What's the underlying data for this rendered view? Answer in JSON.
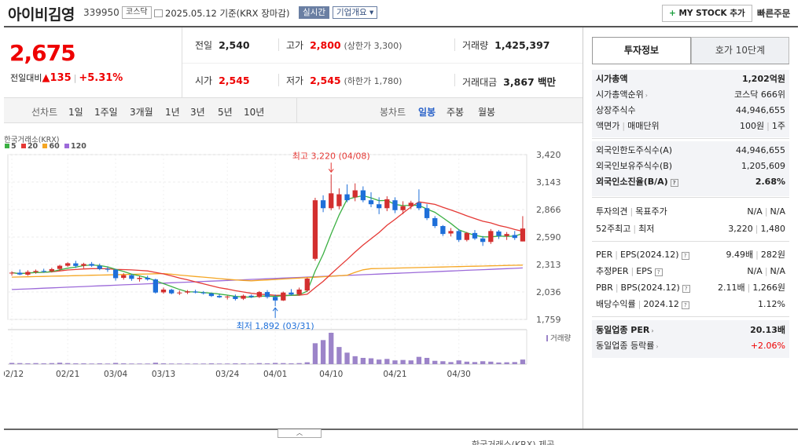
{
  "header": {
    "name": "아이비김영",
    "code": "339950",
    "market": "코스닥",
    "date": "2025.05.12 기준(KRX 장마감)",
    "realtime": "실시간",
    "overview": "기업개요 ▾",
    "mystock": "MY STOCK 추가",
    "mystock_plus": "+",
    "fast_order": "빠른주문"
  },
  "price": {
    "current": "2,675",
    "change_label": "전일대비",
    "change_arrow": "▲",
    "change_value": "135",
    "change_rate": "+5.31%"
  },
  "quote": {
    "prev_label": "전일",
    "prev": "2,540",
    "high_label": "고가",
    "high": "2,800",
    "upper_limit": "(상한가 3,300)",
    "volume_label": "거래량",
    "volume": "1,425,397",
    "open_label": "시가",
    "open": "2,545",
    "low_label": "저가",
    "low": "2,545",
    "lower_limit": "(하한가 1,780)",
    "amount_label": "거래대금",
    "amount": "3,867 백만"
  },
  "period_tabs": {
    "line_label": "선차트",
    "line_items": [
      "1일",
      "1주일",
      "3개월",
      "1년",
      "3년",
      "5년",
      "10년"
    ],
    "candle_label": "봉차트",
    "candle_items": [
      "일봉",
      "주봉",
      "월봉"
    ],
    "candle_active": "일봉"
  },
  "chart_data": {
    "type": "candlestick",
    "source_label": "한국거래소(KRX)",
    "legend": [
      "5",
      "20",
      "60",
      "120"
    ],
    "legend_colors": [
      "#3cb043",
      "#e53935",
      "#f5a623",
      "#9c6ad9"
    ],
    "up_color": "#d32f2f",
    "down_color": "#1e6fd9",
    "volume_label": "거래량",
    "y_ticks": [
      "3,420",
      "3,143",
      "2,866",
      "2,590",
      "2,313",
      "2,036",
      "1,759"
    ],
    "ylim": [
      1759,
      3420
    ],
    "x_labels": [
      "02/12",
      "02/21",
      "03/04",
      "03/13",
      "03/24",
      "04/01",
      "04/10",
      "04/21",
      "04/30"
    ],
    "max_annotation": "최고 3,220 (04/08)",
    "min_annotation": "최저 1,892 (03/31)",
    "candles": [
      {
        "o": 2222,
        "h": 2245,
        "l": 2200,
        "c": 2230
      },
      {
        "o": 2230,
        "h": 2262,
        "l": 2205,
        "c": 2212
      },
      {
        "o": 2210,
        "h": 2255,
        "l": 2198,
        "c": 2238
      },
      {
        "o": 2238,
        "h": 2262,
        "l": 2220,
        "c": 2248
      },
      {
        "o": 2248,
        "h": 2270,
        "l": 2230,
        "c": 2240
      },
      {
        "o": 2245,
        "h": 2280,
        "l": 2232,
        "c": 2266
      },
      {
        "o": 2268,
        "h": 2310,
        "l": 2250,
        "c": 2300
      },
      {
        "o": 2300,
        "h": 2335,
        "l": 2288,
        "c": 2325
      },
      {
        "o": 2324,
        "h": 2350,
        "l": 2278,
        "c": 2298
      },
      {
        "o": 2300,
        "h": 2330,
        "l": 2275,
        "c": 2318
      },
      {
        "o": 2318,
        "h": 2338,
        "l": 2288,
        "c": 2300
      },
      {
        "o": 2300,
        "h": 2322,
        "l": 2255,
        "c": 2268
      },
      {
        "o": 2268,
        "h": 2290,
        "l": 2238,
        "c": 2262
      },
      {
        "o": 2260,
        "h": 2268,
        "l": 2150,
        "c": 2175
      },
      {
        "o": 2178,
        "h": 2225,
        "l": 2160,
        "c": 2205
      },
      {
        "o": 2205,
        "h": 2215,
        "l": 2148,
        "c": 2168
      },
      {
        "o": 2166,
        "h": 2195,
        "l": 2140,
        "c": 2178
      },
      {
        "o": 2178,
        "h": 2200,
        "l": 2150,
        "c": 2162
      },
      {
        "o": 2162,
        "h": 2170,
        "l": 2020,
        "c": 2030
      },
      {
        "o": 2032,
        "h": 2080,
        "l": 2018,
        "c": 2060
      },
      {
        "o": 2058,
        "h": 2068,
        "l": 2012,
        "c": 2022
      },
      {
        "o": 2022,
        "h": 2050,
        "l": 2005,
        "c": 2030
      },
      {
        "o": 2030,
        "h": 2055,
        "l": 2015,
        "c": 2042
      },
      {
        "o": 2040,
        "h": 2058,
        "l": 2022,
        "c": 2030
      },
      {
        "o": 2030,
        "h": 2045,
        "l": 2010,
        "c": 2022
      },
      {
        "o": 2020,
        "h": 2030,
        "l": 1985,
        "c": 1995
      },
      {
        "o": 1996,
        "h": 2012,
        "l": 1975,
        "c": 1982
      },
      {
        "o": 1982,
        "h": 2000,
        "l": 1960,
        "c": 1990
      },
      {
        "o": 1990,
        "h": 2010,
        "l": 1950,
        "c": 1965
      },
      {
        "o": 1968,
        "h": 2010,
        "l": 1955,
        "c": 1998
      },
      {
        "o": 1998,
        "h": 2010,
        "l": 1975,
        "c": 1985
      },
      {
        "o": 1985,
        "h": 2045,
        "l": 1975,
        "c": 2035
      },
      {
        "o": 2035,
        "h": 2055,
        "l": 1970,
        "c": 1985
      },
      {
        "o": 1985,
        "h": 2010,
        "l": 1892,
        "c": 1950
      },
      {
        "o": 1950,
        "h": 2040,
        "l": 1945,
        "c": 2030
      },
      {
        "o": 2030,
        "h": 2065,
        "l": 2000,
        "c": 2010
      },
      {
        "o": 2010,
        "h": 2080,
        "l": 2000,
        "c": 2060
      },
      {
        "o": 2050,
        "h": 2180,
        "l": 2035,
        "c": 2170
      },
      {
        "o": 2370,
        "h": 2985,
        "l": 2350,
        "c": 2960
      },
      {
        "o": 2960,
        "h": 3010,
        "l": 2840,
        "c": 2880
      },
      {
        "o": 2880,
        "h": 3220,
        "l": 2860,
        "c": 3030
      },
      {
        "o": 2900,
        "h": 3080,
        "l": 2870,
        "c": 3020
      },
      {
        "o": 3020,
        "h": 3120,
        "l": 2940,
        "c": 2960
      },
      {
        "o": 2990,
        "h": 3130,
        "l": 2950,
        "c": 3060
      },
      {
        "o": 3060,
        "h": 3100,
        "l": 2940,
        "c": 2960
      },
      {
        "o": 2960,
        "h": 3040,
        "l": 2890,
        "c": 2920
      },
      {
        "o": 2920,
        "h": 2990,
        "l": 2820,
        "c": 2880
      },
      {
        "o": 2880,
        "h": 3000,
        "l": 2850,
        "c": 2970
      },
      {
        "o": 2960,
        "h": 2990,
        "l": 2830,
        "c": 2860
      },
      {
        "o": 2860,
        "h": 2950,
        "l": 2820,
        "c": 2900
      },
      {
        "o": 2900,
        "h": 2955,
        "l": 2870,
        "c": 2935
      },
      {
        "o": 2935,
        "h": 3070,
        "l": 2860,
        "c": 2880
      },
      {
        "o": 2880,
        "h": 2920,
        "l": 2760,
        "c": 2780
      },
      {
        "o": 2780,
        "h": 2800,
        "l": 2680,
        "c": 2700
      },
      {
        "o": 2700,
        "h": 2710,
        "l": 2600,
        "c": 2620
      },
      {
        "o": 2625,
        "h": 2680,
        "l": 2595,
        "c": 2650
      },
      {
        "o": 2650,
        "h": 2670,
        "l": 2540,
        "c": 2560
      },
      {
        "o": 2560,
        "h": 2640,
        "l": 2545,
        "c": 2630
      },
      {
        "o": 2630,
        "h": 2660,
        "l": 2560,
        "c": 2575
      },
      {
        "o": 2575,
        "h": 2600,
        "l": 2500,
        "c": 2540
      },
      {
        "o": 2540,
        "h": 2670,
        "l": 2520,
        "c": 2650
      },
      {
        "o": 2645,
        "h": 2660,
        "l": 2570,
        "c": 2600
      },
      {
        "o": 2600,
        "h": 2640,
        "l": 2560,
        "c": 2620
      },
      {
        "o": 2610,
        "h": 2650,
        "l": 2560,
        "c": 2580
      },
      {
        "o": 2545,
        "h": 2800,
        "l": 2545,
        "c": 2675
      }
    ],
    "volumes": [
      6,
      5,
      4,
      5,
      4,
      5,
      7,
      5,
      4,
      4,
      3,
      4,
      3,
      6,
      4,
      3,
      3,
      3,
      7,
      4,
      3,
      3,
      3,
      3,
      3,
      4,
      3,
      3,
      4,
      4,
      3,
      5,
      4,
      6,
      5,
      4,
      5,
      9,
      100,
      115,
      150,
      82,
      55,
      38,
      30,
      28,
      22,
      25,
      18,
      20,
      18,
      35,
      30,
      16,
      14,
      10,
      18,
      12,
      10,
      14,
      12,
      8,
      9,
      10,
      22
    ]
  },
  "invest": {
    "tab_active": "투자정보",
    "tab_other": "호가 10단계",
    "s1": [
      {
        "k": "시가총액",
        "v": "1,202억원",
        "bold": true
      },
      {
        "k": "시가총액순위",
        "arrow": true,
        "v": "코스닥 666위"
      },
      {
        "k": "상장주식수",
        "v": "44,946,655"
      },
      {
        "k": "액면가",
        "k2": "매매단위",
        "v": "100원",
        "v2": "1주"
      }
    ],
    "s2": [
      {
        "k": "외국인한도주식수(A)",
        "v": "44,946,655"
      },
      {
        "k": "외국인보유주식수(B)",
        "v": "1,205,609"
      },
      {
        "k": "외국인소진율(B/A)",
        "q": true,
        "v": "2.68%",
        "bold": true
      }
    ],
    "s3": [
      {
        "k": "투자의견",
        "k2": "목표주가",
        "v": "N/A",
        "v2": "N/A"
      },
      {
        "k": "52주최고",
        "k2": "최저",
        "v": "3,220",
        "v2": "1,480"
      }
    ],
    "s4": [
      {
        "k": "PER",
        "k2": "EPS(2024.12)",
        "q": true,
        "v": "9.49배",
        "v2": "282원"
      },
      {
        "k": "추정PER",
        "k2": "EPS",
        "q": true,
        "v": "N/A",
        "v2": "N/A"
      },
      {
        "k": "PBR",
        "k2": "BPS(2024.12)",
        "q": true,
        "v": "2.11배",
        "v2": "1,266원"
      },
      {
        "k": "배당수익률",
        "k2": "2024.12",
        "q": true,
        "v": "1.12%"
      }
    ],
    "s5": [
      {
        "k": "동일업종 PER",
        "arrow": true,
        "v": "20.13배",
        "bold": true
      },
      {
        "k": "동일업종 등락률",
        "arrow": true,
        "v": "+2.06%",
        "red": true
      }
    ]
  },
  "footer": {
    "toggle": "︿",
    "source": "한국거래소(KRX) 제공"
  }
}
